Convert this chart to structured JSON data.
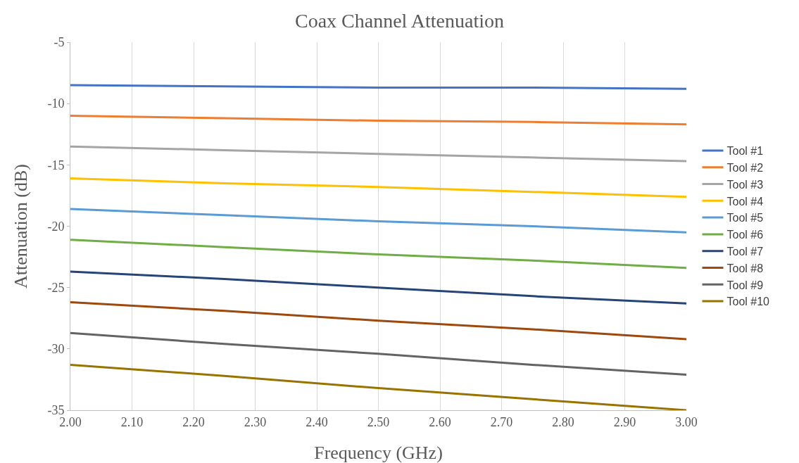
{
  "chart_data": {
    "type": "line",
    "title": "Coax Channel Attenuation",
    "xlabel": "Frequency (GHz)",
    "ylabel": "Attenuation (dB)",
    "x": [
      2.0,
      2.25,
      2.5,
      2.75,
      3.0
    ],
    "xlim": [
      2.0,
      3.0
    ],
    "xticks": [
      {
        "value": 2.0,
        "label": "2.00"
      },
      {
        "value": 2.1,
        "label": "2.10"
      },
      {
        "value": 2.2,
        "label": "2.20"
      },
      {
        "value": 2.3,
        "label": "2.30"
      },
      {
        "value": 2.4,
        "label": "2.40"
      },
      {
        "value": 2.5,
        "label": "2.50"
      },
      {
        "value": 2.6,
        "label": "2.60"
      },
      {
        "value": 2.7,
        "label": "2.70"
      },
      {
        "value": 2.8,
        "label": "2.80"
      },
      {
        "value": 2.9,
        "label": "2.90"
      },
      {
        "value": 3.0,
        "label": "3.00"
      }
    ],
    "ylim": [
      -35,
      -5
    ],
    "yticks": [
      -35,
      -30,
      -25,
      -20,
      -15,
      -10,
      -5
    ],
    "grid": "x",
    "legend": "right",
    "marker": "none",
    "line_style": "solid",
    "series": [
      {
        "name": "Tool #1",
        "color": "#4472c4",
        "values": [
          -8.5,
          -8.6,
          -8.7,
          -8.7,
          -8.8
        ]
      },
      {
        "name": "Tool #2",
        "color": "#ed7d31",
        "values": [
          -11.0,
          -11.2,
          -11.4,
          -11.5,
          -11.7
        ]
      },
      {
        "name": "Tool #3",
        "color": "#a5a5a5",
        "values": [
          -13.5,
          -13.8,
          -14.1,
          -14.4,
          -14.7
        ]
      },
      {
        "name": "Tool #4",
        "color": "#ffc000",
        "values": [
          -16.1,
          -16.5,
          -16.8,
          -17.2,
          -17.6
        ]
      },
      {
        "name": "Tool #5",
        "color": "#5b9bd5",
        "values": [
          -18.6,
          -19.1,
          -19.6,
          -20.0,
          -20.5
        ]
      },
      {
        "name": "Tool #6",
        "color": "#70ad47",
        "values": [
          -21.1,
          -21.7,
          -22.3,
          -22.8,
          -23.4
        ]
      },
      {
        "name": "Tool #7",
        "color": "#264478",
        "values": [
          -23.7,
          -24.3,
          -25.0,
          -25.7,
          -26.3
        ]
      },
      {
        "name": "Tool #8",
        "color": "#9e480e",
        "values": [
          -26.2,
          -26.9,
          -27.7,
          -28.4,
          -29.2
        ]
      },
      {
        "name": "Tool #9",
        "color": "#636363",
        "values": [
          -28.7,
          -29.6,
          -30.4,
          -31.3,
          -32.1
        ]
      },
      {
        "name": "Tool #10",
        "color": "#997300",
        "values": [
          -31.3,
          -32.2,
          -33.2,
          -34.1,
          -35.0
        ]
      }
    ]
  }
}
